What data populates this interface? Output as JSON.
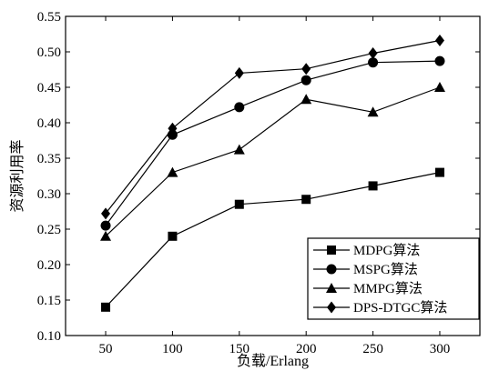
{
  "chart_data": {
    "type": "line",
    "title": "",
    "xlabel": "负载/Erlang",
    "ylabel": "资源利用率",
    "x": [
      50,
      100,
      150,
      200,
      250,
      300
    ],
    "x_ticks": [
      "50",
      "100",
      "150",
      "200",
      "250",
      "300"
    ],
    "xlim": [
      20,
      330
    ],
    "ylim": [
      0.1,
      0.55
    ],
    "y_ticks": [
      "0.10",
      "0.15",
      "0.20",
      "0.25",
      "0.30",
      "0.35",
      "0.40",
      "0.45",
      "0.50",
      "0.55"
    ],
    "grid": false,
    "legend_position": "bottom-right",
    "series": [
      {
        "name": "MDPG算法",
        "marker": "square",
        "values": [
          0.14,
          0.24,
          0.285,
          0.292,
          0.311,
          0.33
        ]
      },
      {
        "name": "MSPG算法",
        "marker": "circle",
        "values": [
          0.255,
          0.383,
          0.422,
          0.46,
          0.485,
          0.487
        ]
      },
      {
        "name": "MMPG算法",
        "marker": "triangle",
        "values": [
          0.24,
          0.33,
          0.362,
          0.433,
          0.415,
          0.45
        ]
      },
      {
        "name": "DPS-DTGC算法",
        "marker": "diamond",
        "values": [
          0.272,
          0.392,
          0.47,
          0.476,
          0.498,
          0.516
        ]
      }
    ]
  }
}
